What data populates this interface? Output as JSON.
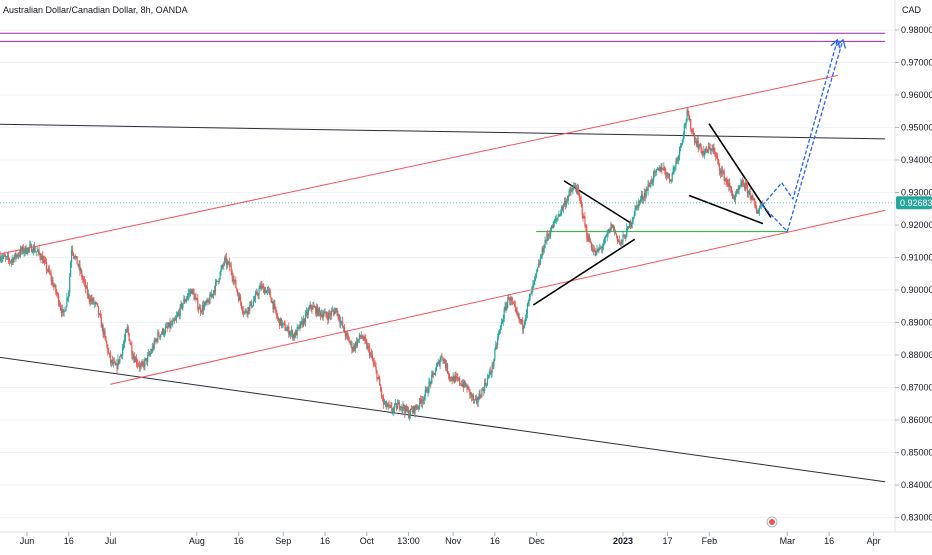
{
  "header": {
    "title": "Australian Dollar/Canadian Dollar, 8h, OANDA",
    "currency": "CAD"
  },
  "colors": {
    "up": "#26a69a",
    "down": "#ef5350",
    "channel": "#f7525f",
    "trend": "#2a2e39",
    "horizontal": "#9c27b0",
    "support": "#4caf50",
    "projection": "#2962ff",
    "price_tag": "#26a69a"
  },
  "chart_data": {
    "type": "candlestick",
    "title": "Australian Dollar/Canadian Dollar, 8h, OANDA",
    "ylabel": "CAD",
    "ylim": [
      0.8265,
      0.9845
    ],
    "y_ticks": [
      "0.98000",
      "0.97000",
      "0.96000",
      "0.95000",
      "0.94000",
      "0.93000",
      "0.92000",
      "0.91000",
      "0.90000",
      "0.89000",
      "0.88000",
      "0.87000",
      "0.86000",
      "0.85000",
      "0.84000",
      "0.83000"
    ],
    "x_ticks": [
      {
        "label": "Jun",
        "date": "2022-06-01",
        "bold": false
      },
      {
        "label": "16",
        "date": "2022-06-16",
        "bold": false
      },
      {
        "label": "Jul",
        "date": "2022-07-01",
        "bold": false
      },
      {
        "label": "Aug",
        "date": "2022-08-01",
        "bold": false
      },
      {
        "label": "16",
        "date": "2022-08-16",
        "bold": false
      },
      {
        "label": "Sep",
        "date": "2022-09-01",
        "bold": false
      },
      {
        "label": "16",
        "date": "2022-09-16",
        "bold": false
      },
      {
        "label": "Oct",
        "date": "2022-10-01",
        "bold": false
      },
      {
        "label": "13:00",
        "date": "2022-10-16",
        "bold": false
      },
      {
        "label": "Nov",
        "date": "2022-11-01",
        "bold": false
      },
      {
        "label": "16",
        "date": "2022-11-16",
        "bold": false
      },
      {
        "label": "Dec",
        "date": "2022-12-01",
        "bold": false
      },
      {
        "label": "2023",
        "date": "2023-01-01",
        "bold": true
      },
      {
        "label": "17",
        "date": "2023-01-17",
        "bold": false
      },
      {
        "label": "Feb",
        "date": "2023-02-01",
        "bold": false
      },
      {
        "label": "Mar",
        "date": "2023-03-01",
        "bold": false
      },
      {
        "label": "16",
        "date": "2023-03-16",
        "bold": false
      },
      {
        "label": "Apr",
        "date": "2023-04-01",
        "bold": false
      }
    ],
    "last_price": "0.92683",
    "price_path": [
      [
        "2022-05-22",
        0.9105
      ],
      [
        "2022-05-26",
        0.909
      ],
      [
        "2022-05-30",
        0.912
      ],
      [
        "2022-06-03",
        0.913
      ],
      [
        "2022-06-06",
        0.9105
      ],
      [
        "2022-06-09",
        0.905
      ],
      [
        "2022-06-12",
        0.898
      ],
      [
        "2022-06-14",
        0.892
      ],
      [
        "2022-06-16",
        0.9
      ],
      [
        "2022-06-17",
        0.913
      ],
      [
        "2022-06-20",
        0.906
      ],
      [
        "2022-06-23",
        0.898
      ],
      [
        "2022-06-26",
        0.895
      ],
      [
        "2022-06-29",
        0.885
      ],
      [
        "2022-07-01",
        0.878
      ],
      [
        "2022-07-03",
        0.876
      ],
      [
        "2022-07-05",
        0.881
      ],
      [
        "2022-07-07",
        0.888
      ],
      [
        "2022-07-09",
        0.88
      ],
      [
        "2022-07-12",
        0.876
      ],
      [
        "2022-07-15",
        0.88
      ],
      [
        "2022-07-18",
        0.886
      ],
      [
        "2022-07-21",
        0.888
      ],
      [
        "2022-07-24",
        0.89
      ],
      [
        "2022-07-27",
        0.896
      ],
      [
        "2022-07-30",
        0.9
      ],
      [
        "2022-08-02",
        0.894
      ],
      [
        "2022-08-05",
        0.896
      ],
      [
        "2022-08-08",
        0.902
      ],
      [
        "2022-08-11",
        0.909
      ],
      [
        "2022-08-13",
        0.907
      ],
      [
        "2022-08-16",
        0.898
      ],
      [
        "2022-08-18",
        0.893
      ],
      [
        "2022-08-21",
        0.896
      ],
      [
        "2022-08-24",
        0.901
      ],
      [
        "2022-08-27",
        0.899
      ],
      [
        "2022-08-30",
        0.891
      ],
      [
        "2022-09-02",
        0.888
      ],
      [
        "2022-09-05",
        0.886
      ],
      [
        "2022-09-08",
        0.89
      ],
      [
        "2022-09-11",
        0.895
      ],
      [
        "2022-09-14",
        0.893
      ],
      [
        "2022-09-17",
        0.892
      ],
      [
        "2022-09-20",
        0.894
      ],
      [
        "2022-09-23",
        0.887
      ],
      [
        "2022-09-26",
        0.882
      ],
      [
        "2022-09-29",
        0.886
      ],
      [
        "2022-10-02",
        0.881
      ],
      [
        "2022-10-05",
        0.873
      ],
      [
        "2022-10-07",
        0.865
      ],
      [
        "2022-10-10",
        0.863
      ],
      [
        "2022-10-13",
        0.865
      ],
      [
        "2022-10-16",
        0.862
      ],
      [
        "2022-10-19",
        0.864
      ],
      [
        "2022-10-22",
        0.868
      ],
      [
        "2022-10-25",
        0.874
      ],
      [
        "2022-10-28",
        0.88
      ],
      [
        "2022-10-31",
        0.873
      ],
      [
        "2022-11-03",
        0.872
      ],
      [
        "2022-11-06",
        0.87
      ],
      [
        "2022-11-09",
        0.865
      ],
      [
        "2022-11-12",
        0.87
      ],
      [
        "2022-11-15",
        0.876
      ],
      [
        "2022-11-17",
        0.885
      ],
      [
        "2022-11-19",
        0.892
      ],
      [
        "2022-11-21",
        0.898
      ],
      [
        "2022-11-24",
        0.892
      ],
      [
        "2022-11-26",
        0.889
      ],
      [
        "2022-11-28",
        0.896
      ],
      [
        "2022-12-01",
        0.905
      ],
      [
        "2022-12-04",
        0.915
      ],
      [
        "2022-12-07",
        0.92
      ],
      [
        "2022-12-10",
        0.925
      ],
      [
        "2022-12-13",
        0.93
      ],
      [
        "2022-12-15",
        0.932
      ],
      [
        "2022-12-17",
        0.926
      ],
      [
        "2022-12-19",
        0.917
      ],
      [
        "2022-12-22",
        0.911
      ],
      [
        "2022-12-25",
        0.914
      ],
      [
        "2022-12-28",
        0.92
      ],
      [
        "2022-12-31",
        0.914
      ],
      [
        "2023-01-03",
        0.919
      ],
      [
        "2023-01-06",
        0.926
      ],
      [
        "2023-01-09",
        0.93
      ],
      [
        "2023-01-12",
        0.935
      ],
      [
        "2023-01-15",
        0.938
      ],
      [
        "2023-01-18",
        0.934
      ],
      [
        "2023-01-21",
        0.942
      ],
      [
        "2023-01-23",
        0.95
      ],
      [
        "2023-01-24",
        0.954
      ],
      [
        "2023-01-27",
        0.946
      ],
      [
        "2023-01-30",
        0.942
      ],
      [
        "2023-02-02",
        0.944
      ],
      [
        "2023-02-05",
        0.937
      ],
      [
        "2023-02-08",
        0.932
      ],
      [
        "2023-02-10",
        0.928
      ],
      [
        "2023-02-13",
        0.933
      ],
      [
        "2023-02-16",
        0.929
      ],
      [
        "2023-02-18",
        0.924
      ],
      [
        "2023-02-20",
        0.9268
      ]
    ],
    "drawings": [
      {
        "name": "purple-horizontal-upper",
        "kind": "purple",
        "from": [
          "2022-05-22",
          0.979
        ],
        "to": [
          "2023-04-05",
          0.979
        ]
      },
      {
        "name": "purple-horizontal-lower",
        "kind": "purple",
        "from": [
          "2022-05-22",
          0.9765
        ],
        "to": [
          "2023-04-05",
          0.9765
        ]
      },
      {
        "name": "black-resistance-line",
        "kind": "black",
        "from": [
          "2022-05-22",
          0.951
        ],
        "to": [
          "2023-04-05",
          0.9465
        ]
      },
      {
        "name": "black-lower-trendline",
        "kind": "black",
        "from": [
          "2022-05-22",
          0.8793
        ],
        "to": [
          "2023-04-05",
          0.841
        ]
      },
      {
        "name": "red-channel-upper",
        "kind": "red",
        "from": [
          "2022-05-22",
          0.911
        ],
        "to": [
          "2023-03-19",
          0.966
        ]
      },
      {
        "name": "red-channel-lower",
        "kind": "red",
        "from": [
          "2022-07-01",
          0.871
        ],
        "to": [
          "2023-04-05",
          0.9245
        ]
      },
      {
        "name": "green-support-line",
        "kind": "green",
        "from": [
          "2022-12-01",
          0.918
        ],
        "to": [
          "2023-03-01",
          0.918
        ]
      },
      {
        "name": "triangle-upper-side",
        "kind": "pattern",
        "from": [
          "2022-12-11",
          0.9335
        ],
        "to": [
          "2023-01-04",
          0.9205
        ]
      },
      {
        "name": "triangle-lower-side",
        "kind": "pattern",
        "from": [
          "2022-11-30",
          0.8955
        ],
        "to": [
          "2023-01-05",
          0.9155
        ]
      },
      {
        "name": "wedge-upper-side",
        "kind": "pattern",
        "from": [
          "2023-02-01",
          0.951
        ],
        "to": [
          "2023-02-23",
          0.9225
        ]
      },
      {
        "name": "wedge-lower-side",
        "kind": "pattern",
        "from": [
          "2023-01-25",
          0.929
        ],
        "to": [
          "2023-02-20",
          0.9205
        ]
      }
    ],
    "projections": [
      {
        "name": "projection-path-short",
        "points": [
          [
            "2023-02-20",
            0.926
          ],
          [
            "2023-02-27",
            0.933
          ],
          [
            "2023-03-03",
            0.928
          ],
          [
            "2023-03-19",
            0.977
          ]
        ]
      },
      {
        "name": "projection-path-long",
        "points": [
          [
            "2023-02-20",
            0.926
          ],
          [
            "2023-03-01",
            0.918
          ],
          [
            "2023-03-21",
            0.977
          ]
        ]
      }
    ]
  }
}
